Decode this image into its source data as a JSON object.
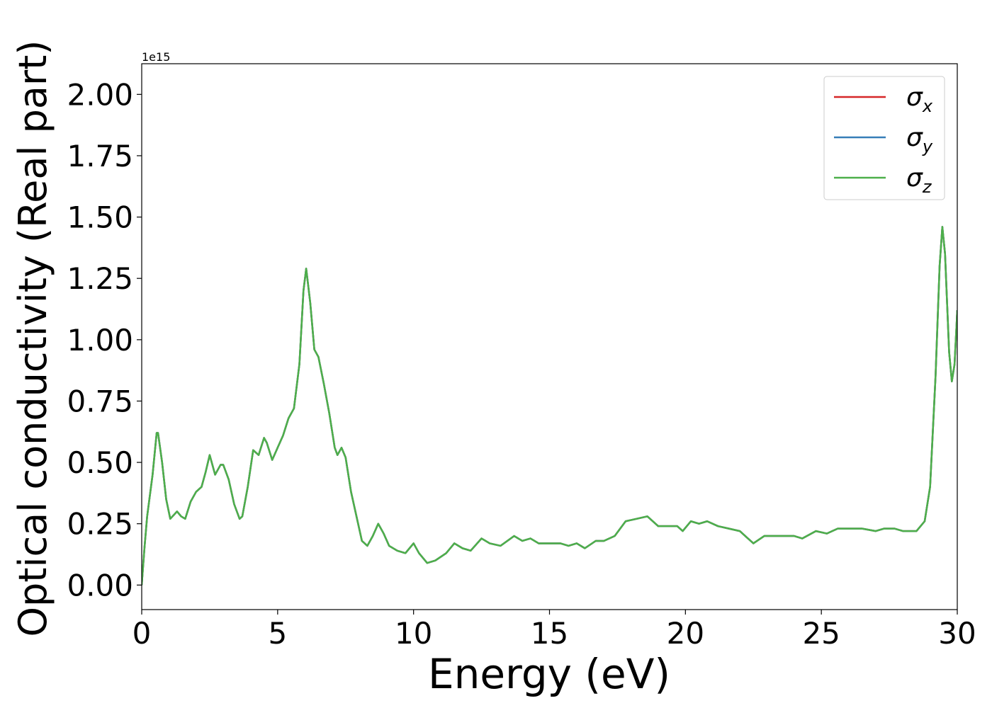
{
  "chart_data": {
    "type": "line",
    "x_label": "Energy (eV)",
    "y_label": "Optical conductivity (Real part)",
    "y_offset_label": "1e15",
    "xlim": [
      0,
      30
    ],
    "ylim": [
      -0.1,
      2.125
    ],
    "xticks": [
      0,
      5,
      10,
      15,
      20,
      25,
      30
    ],
    "yticks": [
      {
        "value": 0,
        "label": "0.00"
      },
      {
        "value": 0.25,
        "label": "0.25"
      },
      {
        "value": 0.5,
        "label": "0.50"
      },
      {
        "value": 0.75,
        "label": "0.75"
      },
      {
        "value": 1,
        "label": "1.00"
      },
      {
        "value": 1.25,
        "label": "1.25"
      },
      {
        "value": 1.5,
        "label": "1.50"
      },
      {
        "value": 1.75,
        "label": "1.75"
      },
      {
        "value": 2,
        "label": "2.00"
      }
    ],
    "legend": "upper right",
    "x": [
      0,
      0.1,
      0.2,
      0.4,
      0.55,
      0.6,
      0.75,
      0.9,
      1.05,
      1.3,
      1.45,
      1.6,
      1.8,
      2.0,
      2.2,
      2.35,
      2.5,
      2.6,
      2.7,
      2.9,
      3.0,
      3.2,
      3.4,
      3.6,
      3.7,
      3.9,
      4.1,
      4.3,
      4.5,
      4.6,
      4.8,
      5.0,
      5.2,
      5.4,
      5.6,
      5.8,
      5.95,
      6.05,
      6.2,
      6.35,
      6.5,
      6.7,
      6.9,
      7.1,
      7.2,
      7.35,
      7.5,
      7.7,
      7.9,
      8.1,
      8.3,
      8.5,
      8.7,
      8.9,
      9.1,
      9.4,
      9.7,
      10.0,
      10.2,
      10.5,
      10.8,
      11.2,
      11.5,
      11.8,
      12.1,
      12.5,
      12.8,
      13.2,
      13.7,
      14.0,
      14.3,
      14.6,
      15.0,
      15.4,
      15.7,
      16.0,
      16.3,
      16.7,
      17.0,
      17.4,
      17.8,
      18.2,
      18.6,
      19.0,
      19.4,
      19.7,
      19.9,
      20.2,
      20.5,
      20.8,
      21.2,
      21.6,
      22.0,
      22.3,
      22.5,
      22.9,
      23.5,
      24.0,
      24.3,
      24.8,
      25.2,
      25.6,
      26.0,
      26.5,
      27.0,
      27.3,
      27.7,
      28.0,
      28.5,
      28.8,
      29.0,
      29.2,
      29.35,
      29.45,
      29.55,
      29.7,
      29.8,
      29.9,
      30.0
    ],
    "series": [
      {
        "name": "σx",
        "color": "#d62728",
        "values": [
          0,
          0.15,
          0.28,
          0.45,
          0.62,
          0.62,
          0.5,
          0.35,
          0.27,
          0.3,
          0.28,
          0.27,
          0.34,
          0.38,
          0.4,
          0.46,
          0.53,
          0.49,
          0.45,
          0.49,
          0.49,
          0.43,
          0.33,
          0.27,
          0.28,
          0.4,
          0.55,
          0.53,
          0.6,
          0.58,
          0.51,
          0.56,
          0.61,
          0.68,
          0.72,
          0.9,
          1.2,
          1.29,
          1.15,
          0.96,
          0.93,
          0.82,
          0.7,
          0.56,
          0.53,
          0.56,
          0.52,
          0.38,
          0.28,
          0.18,
          0.16,
          0.2,
          0.25,
          0.21,
          0.16,
          0.14,
          0.13,
          0.17,
          0.13,
          0.09,
          0.1,
          0.13,
          0.17,
          0.15,
          0.14,
          0.19,
          0.17,
          0.16,
          0.2,
          0.18,
          0.19,
          0.17,
          0.17,
          0.17,
          0.16,
          0.17,
          0.15,
          0.18,
          0.18,
          0.2,
          0.26,
          0.27,
          0.28,
          0.24,
          0.24,
          0.24,
          0.22,
          0.26,
          0.25,
          0.26,
          0.24,
          0.23,
          0.22,
          0.19,
          0.17,
          0.2,
          0.2,
          0.2,
          0.19,
          0.22,
          0.21,
          0.23,
          0.23,
          0.23,
          0.22,
          0.23,
          0.23,
          0.22,
          0.22,
          0.26,
          0.4,
          0.85,
          1.3,
          1.46,
          1.35,
          0.95,
          0.83,
          0.9,
          1.12
        ]
      },
      {
        "name": "σy",
        "color": "#377eb8",
        "values": [
          0,
          0.15,
          0.28,
          0.45,
          0.62,
          0.62,
          0.5,
          0.35,
          0.27,
          0.3,
          0.28,
          0.27,
          0.34,
          0.38,
          0.4,
          0.46,
          0.53,
          0.49,
          0.45,
          0.49,
          0.49,
          0.43,
          0.33,
          0.27,
          0.28,
          0.4,
          0.55,
          0.53,
          0.6,
          0.58,
          0.51,
          0.56,
          0.61,
          0.68,
          0.72,
          0.9,
          1.2,
          1.29,
          1.15,
          0.96,
          0.93,
          0.82,
          0.7,
          0.56,
          0.53,
          0.56,
          0.52,
          0.38,
          0.28,
          0.18,
          0.16,
          0.2,
          0.25,
          0.21,
          0.16,
          0.14,
          0.13,
          0.17,
          0.13,
          0.09,
          0.1,
          0.13,
          0.17,
          0.15,
          0.14,
          0.19,
          0.17,
          0.16,
          0.2,
          0.18,
          0.19,
          0.17,
          0.17,
          0.17,
          0.16,
          0.17,
          0.15,
          0.18,
          0.18,
          0.2,
          0.26,
          0.27,
          0.28,
          0.24,
          0.24,
          0.24,
          0.22,
          0.26,
          0.25,
          0.26,
          0.24,
          0.23,
          0.22,
          0.19,
          0.17,
          0.2,
          0.2,
          0.2,
          0.19,
          0.22,
          0.21,
          0.23,
          0.23,
          0.23,
          0.22,
          0.23,
          0.23,
          0.22,
          0.22,
          0.26,
          0.4,
          0.85,
          1.3,
          1.46,
          1.35,
          0.95,
          0.83,
          0.9,
          1.12
        ]
      },
      {
        "name": "σz",
        "color": "#4daf4a",
        "values": [
          0,
          0.15,
          0.28,
          0.45,
          0.62,
          0.62,
          0.5,
          0.35,
          0.27,
          0.3,
          0.28,
          0.27,
          0.34,
          0.38,
          0.4,
          0.46,
          0.53,
          0.49,
          0.45,
          0.49,
          0.49,
          0.43,
          0.33,
          0.27,
          0.28,
          0.4,
          0.55,
          0.53,
          0.6,
          0.58,
          0.51,
          0.56,
          0.61,
          0.68,
          0.72,
          0.9,
          1.2,
          1.29,
          1.15,
          0.96,
          0.93,
          0.82,
          0.7,
          0.56,
          0.53,
          0.56,
          0.52,
          0.38,
          0.28,
          0.18,
          0.16,
          0.2,
          0.25,
          0.21,
          0.16,
          0.14,
          0.13,
          0.17,
          0.13,
          0.09,
          0.1,
          0.13,
          0.17,
          0.15,
          0.14,
          0.19,
          0.17,
          0.16,
          0.2,
          0.18,
          0.19,
          0.17,
          0.17,
          0.17,
          0.16,
          0.17,
          0.15,
          0.18,
          0.18,
          0.2,
          0.26,
          0.27,
          0.28,
          0.24,
          0.24,
          0.24,
          0.22,
          0.26,
          0.25,
          0.26,
          0.24,
          0.23,
          0.22,
          0.19,
          0.17,
          0.2,
          0.2,
          0.2,
          0.19,
          0.22,
          0.21,
          0.23,
          0.23,
          0.23,
          0.22,
          0.23,
          0.23,
          0.22,
          0.22,
          0.26,
          0.4,
          0.85,
          1.3,
          1.46,
          1.35,
          0.95,
          0.83,
          0.9,
          1.12
        ]
      }
    ]
  }
}
